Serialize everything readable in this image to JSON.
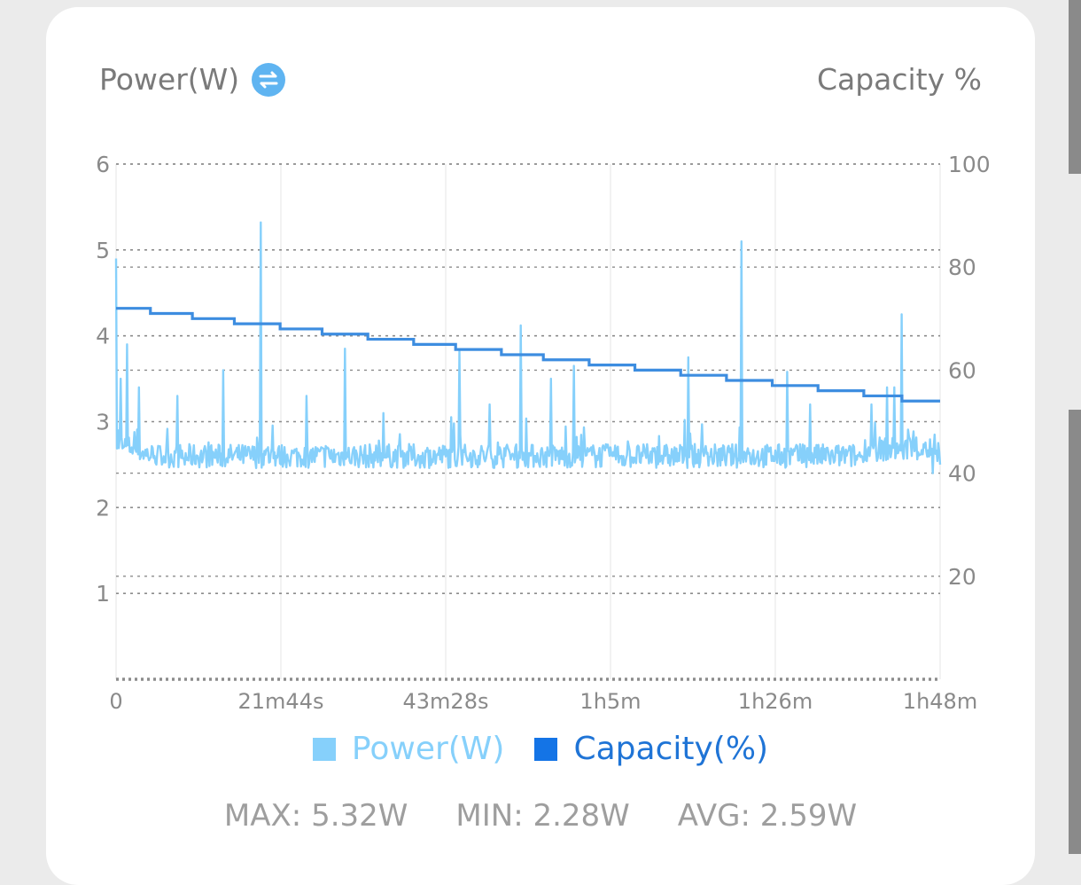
{
  "header": {
    "left_title": "Power(W)",
    "right_title": "Capacity %",
    "swap_icon": "swap-arrows-icon"
  },
  "colors": {
    "power": "#86d0fb",
    "capacity": "#3d8de0",
    "capacity_swatch": "#1474e6",
    "capacity_text": "#1f74d6",
    "grid": "#8c8c8c",
    "vgrid": "#eeeeee",
    "tick": "#8a8a8a"
  },
  "chart_data": {
    "type": "line",
    "x_ticks": [
      "0",
      "21m44s",
      "43m28s",
      "1h5m",
      "1h26m",
      "1h48m"
    ],
    "x_range_minutes": [
      0,
      108
    ],
    "y_left": {
      "label": "Power(W)",
      "ticks": [
        "1",
        "2",
        "3",
        "4",
        "5",
        "6"
      ],
      "range": [
        0,
        6
      ]
    },
    "y_right": {
      "label": "Capacity %",
      "ticks": [
        "20",
        "40",
        "60",
        "80",
        "100"
      ],
      "range": [
        0,
        100
      ]
    },
    "grid": true,
    "legend_position": "bottom",
    "series": [
      {
        "name": "Power(W)",
        "axis": "left",
        "baseline_w": 2.6,
        "x_minutes": [
          0,
          0.3,
          0.6,
          1,
          1.5,
          2,
          3,
          4,
          5,
          6,
          8,
          9,
          10,
          14,
          17,
          19,
          21,
          25,
          28,
          30,
          33,
          35,
          38,
          40,
          42,
          45,
          47,
          49,
          51,
          53,
          55,
          57,
          60,
          63,
          66,
          69,
          72,
          75,
          77,
          80,
          82,
          84,
          86,
          88,
          91,
          94,
          97,
          99,
          100,
          101,
          102,
          103,
          104,
          106,
          107,
          108
        ],
        "values": [
          4.9,
          2.9,
          3.5,
          2.7,
          3.9,
          2.7,
          3.4,
          2.6,
          2.6,
          2.5,
          3.3,
          2.5,
          2.5,
          3.6,
          2.6,
          5.32,
          2.6,
          3.3,
          2.6,
          3.85,
          2.6,
          3.1,
          2.6,
          2.6,
          2.6,
          3.82,
          2.6,
          3.2,
          2.6,
          4.12,
          2.6,
          3.5,
          3.65,
          2.6,
          2.6,
          2.6,
          2.6,
          3.75,
          2.6,
          2.6,
          5.1,
          2.6,
          2.6,
          3.58,
          3.2,
          2.6,
          2.6,
          3.2,
          2.7,
          3.4,
          3.4,
          4.25,
          2.8,
          2.7,
          2.4,
          2.5
        ]
      },
      {
        "name": "Capacity(%)",
        "axis": "right",
        "x_minutes": [
          0,
          4.5,
          10,
          15.5,
          21.5,
          27,
          33,
          39,
          44.5,
          50.5,
          56,
          62,
          68,
          74,
          80,
          86,
          92,
          98,
          103,
          108
        ],
        "values": [
          72,
          71,
          70,
          69,
          68,
          67,
          66,
          65,
          64,
          63,
          62,
          61,
          60,
          59,
          58,
          57,
          56,
          55,
          54,
          54
        ]
      }
    ]
  },
  "legend": [
    {
      "label": "Power(W)",
      "color": "#86d0fb",
      "text_color": "#86d0fb"
    },
    {
      "label": "Capacity(%)",
      "color": "#1474e6",
      "text_color": "#1f74d6"
    }
  ],
  "stats": {
    "max": "MAX: 5.32W",
    "min": "MIN: 2.28W",
    "avg": "AVG: 2.59W"
  }
}
